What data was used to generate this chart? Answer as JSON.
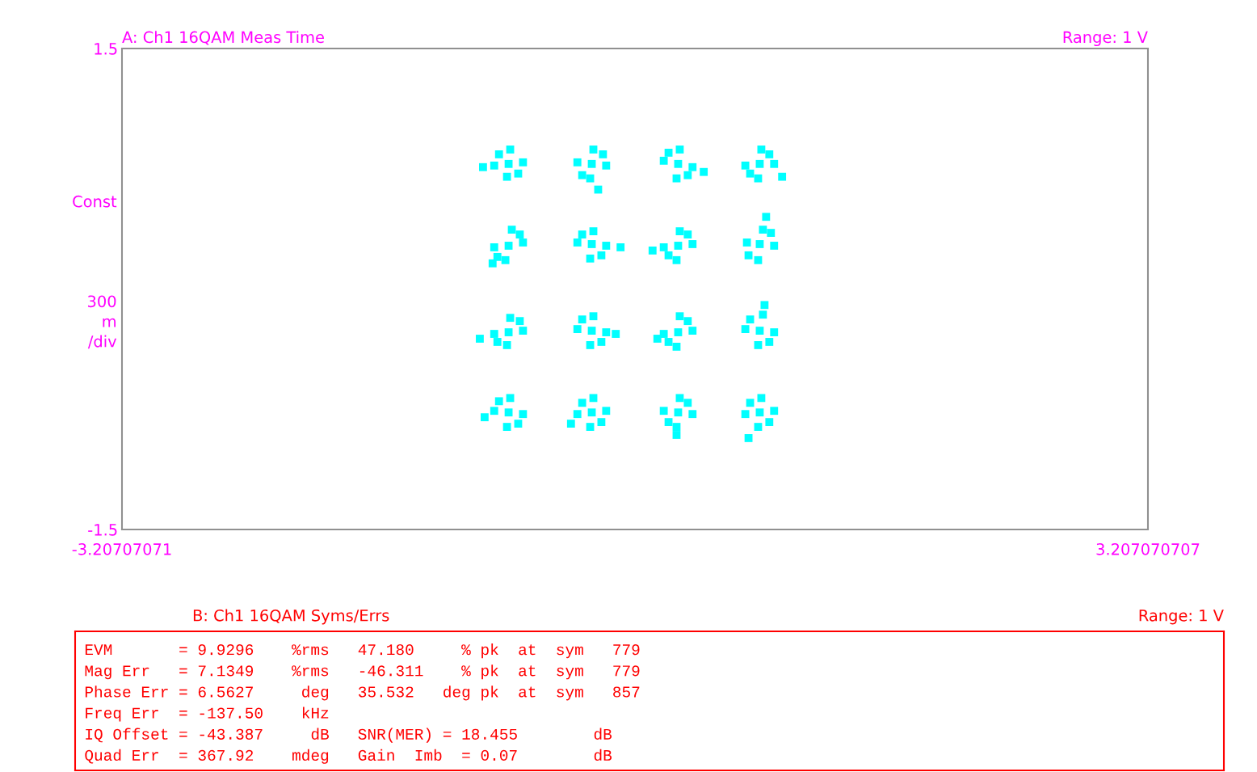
{
  "chart_data": [
    {
      "type": "scatter",
      "title": "A: Ch1 16QAM Meas Time",
      "subtitle": "Range: 1 V",
      "ylabel": "Const\n\n\n\n\n300\nm\n/div",
      "marker": "square",
      "xlim": [
        -3.20707071,
        3.207070707
      ],
      "xticks": [
        -3.20707071,
        3.207070707
      ],
      "ylim": [
        -1.5,
        1.5
      ],
      "yticks": [
        -1.5,
        1.5
      ],
      "series": [
        {
          "color": "#00ffff",
          "x": [
            -0.79,
            -0.7,
            -0.88,
            -0.78,
            -0.8,
            -0.73,
            -0.85,
            -0.95,
            -0.27,
            -0.18,
            -0.36,
            -0.26,
            -0.28,
            -0.2,
            -0.33,
            -0.23,
            0.27,
            0.36,
            0.18,
            0.28,
            0.26,
            0.33,
            0.21,
            0.43,
            0.78,
            0.87,
            0.69,
            0.79,
            0.77,
            0.84,
            0.72,
            0.92,
            -0.79,
            -0.7,
            -0.88,
            -0.77,
            -0.81,
            -0.72,
            -0.86,
            -0.89,
            -0.27,
            -0.18,
            -0.36,
            -0.26,
            -0.28,
            -0.33,
            -0.21,
            -0.09,
            0.27,
            0.36,
            0.18,
            0.28,
            0.26,
            0.33,
            0.21,
            0.11,
            0.78,
            0.87,
            0.7,
            0.8,
            0.77,
            0.85,
            0.71,
            0.82,
            -0.79,
            -0.7,
            -0.88,
            -0.78,
            -0.8,
            -0.72,
            -0.86,
            -0.97,
            -0.27,
            -0.18,
            -0.36,
            -0.26,
            -0.28,
            -0.21,
            -0.33,
            -0.12,
            0.27,
            0.36,
            0.18,
            0.28,
            0.26,
            0.33,
            0.21,
            0.14,
            0.78,
            0.87,
            0.69,
            0.8,
            0.77,
            0.72,
            0.84,
            0.81,
            -0.79,
            -0.7,
            -0.88,
            -0.78,
            -0.8,
            -0.73,
            -0.85,
            -0.94,
            -0.27,
            -0.18,
            -0.36,
            -0.26,
            -0.28,
            -0.21,
            -0.33,
            -0.4,
            0.27,
            0.36,
            0.18,
            0.28,
            0.26,
            0.33,
            0.21,
            0.26,
            0.78,
            0.87,
            0.69,
            0.79,
            0.77,
            0.84,
            0.72,
            0.71
          ],
          "values": [
            0.78,
            0.79,
            0.77,
            0.87,
            0.7,
            0.72,
            0.84,
            0.76,
            0.78,
            0.77,
            0.79,
            0.87,
            0.69,
            0.84,
            0.71,
            0.62,
            0.78,
            0.76,
            0.8,
            0.87,
            0.69,
            0.71,
            0.85,
            0.73,
            0.78,
            0.78,
            0.77,
            0.87,
            0.69,
            0.84,
            0.72,
            0.7,
            0.27,
            0.29,
            0.26,
            0.37,
            0.18,
            0.34,
            0.2,
            0.16,
            0.28,
            0.27,
            0.29,
            0.36,
            0.19,
            0.34,
            0.21,
            0.26,
            0.27,
            0.28,
            0.26,
            0.36,
            0.18,
            0.34,
            0.21,
            0.24,
            0.28,
            0.27,
            0.29,
            0.37,
            0.18,
            0.35,
            0.21,
            0.45,
            -0.27,
            -0.26,
            -0.28,
            -0.18,
            -0.35,
            -0.2,
            -0.33,
            -0.31,
            -0.26,
            -0.27,
            -0.25,
            -0.17,
            -0.35,
            -0.33,
            -0.19,
            -0.28,
            -0.27,
            -0.26,
            -0.28,
            -0.17,
            -0.36,
            -0.2,
            -0.33,
            -0.31,
            -0.26,
            -0.27,
            -0.25,
            -0.16,
            -0.35,
            -0.19,
            -0.33,
            -0.1,
            -0.77,
            -0.78,
            -0.76,
            -0.68,
            -0.86,
            -0.84,
            -0.7,
            -0.8,
            -0.77,
            -0.76,
            -0.78,
            -0.68,
            -0.86,
            -0.83,
            -0.71,
            -0.84,
            -0.77,
            -0.78,
            -0.76,
            -0.68,
            -0.86,
            -0.71,
            -0.83,
            -0.91,
            -0.77,
            -0.76,
            -0.78,
            -0.68,
            -0.86,
            -0.83,
            -0.71,
            -0.93
          ]
        }
      ]
    },
    {
      "type": "other",
      "title": "B: Ch1 16QAM Syms/Errs",
      "subtitle": "Range: 1 V",
      "annotations": [
        "EVM       = 9.9296    %rms   47.180     % pk  at  sym   779",
        "Mag Err   = 7.1349    %rms   -46.311    % pk  at  sym   779",
        "Phase Err = 6.5627     deg   35.532   deg pk  at  sym   857",
        "Freq Err  = -137.50    kHz",
        "IQ Offset = -43.387     dB   SNR(MER) = 18.455        dB",
        "Quad Err  = 367.92    mdeg   Gain  Imb  = 0.07        dB"
      ]
    }
  ]
}
